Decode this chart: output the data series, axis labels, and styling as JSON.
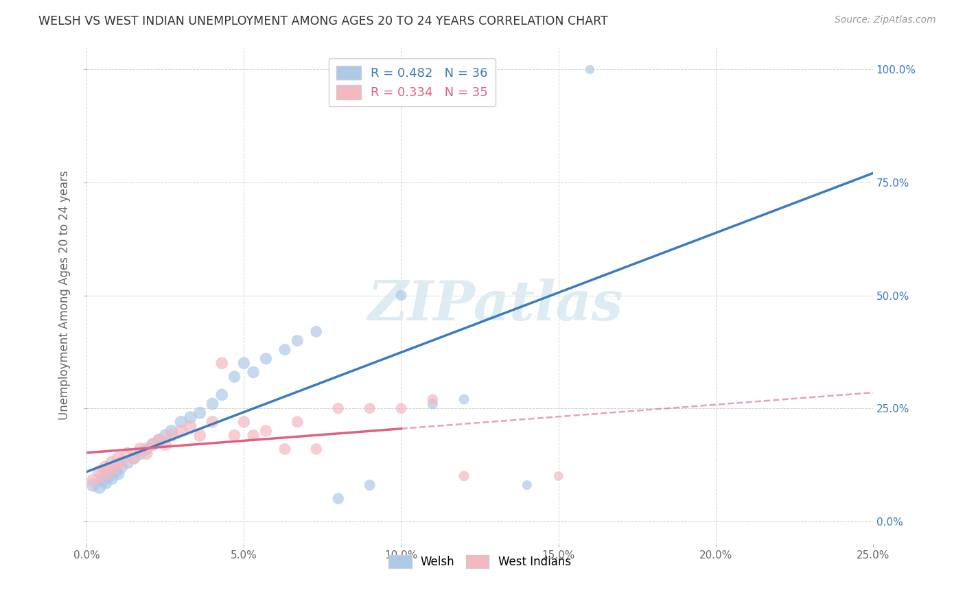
{
  "title": "WELSH VS WEST INDIAN UNEMPLOYMENT AMONG AGES 20 TO 24 YEARS CORRELATION CHART",
  "source": "Source: ZipAtlas.com",
  "xlabel_ticks": [
    "0.0%",
    "5.0%",
    "10.0%",
    "15.0%",
    "20.0%",
    "25.0%"
  ],
  "ylabel_label": "Unemployment Among Ages 20 to 24 years",
  "xlabel_range": [
    0.0,
    0.25
  ],
  "ylabel_range": [
    -5,
    105
  ],
  "watermark": "ZIPatlas",
  "legend_entries": [
    {
      "label": "R = 0.482   N = 36",
      "color": "#adc9e8"
    },
    {
      "label": "R = 0.334   N = 35",
      "color": "#f4b8c1"
    }
  ],
  "welsh_scatter": [
    [
      0.002,
      8.0
    ],
    [
      0.004,
      7.5
    ],
    [
      0.005,
      9.0
    ],
    [
      0.006,
      8.5
    ],
    [
      0.007,
      10.0
    ],
    [
      0.008,
      9.5
    ],
    [
      0.009,
      11.0
    ],
    [
      0.01,
      10.5
    ],
    [
      0.011,
      12.0
    ],
    [
      0.013,
      13.0
    ],
    [
      0.015,
      14.0
    ],
    [
      0.017,
      15.0
    ],
    [
      0.019,
      16.0
    ],
    [
      0.021,
      17.0
    ],
    [
      0.023,
      18.0
    ],
    [
      0.025,
      19.0
    ],
    [
      0.027,
      20.0
    ],
    [
      0.03,
      22.0
    ],
    [
      0.033,
      23.0
    ],
    [
      0.036,
      24.0
    ],
    [
      0.04,
      26.0
    ],
    [
      0.043,
      28.0
    ],
    [
      0.047,
      32.0
    ],
    [
      0.05,
      35.0
    ],
    [
      0.053,
      33.0
    ],
    [
      0.057,
      36.0
    ],
    [
      0.063,
      38.0
    ],
    [
      0.067,
      40.0
    ],
    [
      0.073,
      42.0
    ],
    [
      0.08,
      5.0
    ],
    [
      0.09,
      8.0
    ],
    [
      0.1,
      50.0
    ],
    [
      0.11,
      26.0
    ],
    [
      0.12,
      27.0
    ],
    [
      0.14,
      8.0
    ],
    [
      0.16,
      100.0
    ]
  ],
  "west_indian_scatter": [
    [
      0.002,
      9.0
    ],
    [
      0.004,
      11.0
    ],
    [
      0.005,
      10.0
    ],
    [
      0.006,
      12.0
    ],
    [
      0.007,
      11.0
    ],
    [
      0.008,
      13.0
    ],
    [
      0.009,
      12.0
    ],
    [
      0.01,
      14.0
    ],
    [
      0.011,
      13.0
    ],
    [
      0.013,
      15.0
    ],
    [
      0.015,
      14.0
    ],
    [
      0.017,
      16.0
    ],
    [
      0.019,
      15.0
    ],
    [
      0.021,
      17.0
    ],
    [
      0.023,
      18.0
    ],
    [
      0.025,
      17.0
    ],
    [
      0.027,
      19.0
    ],
    [
      0.03,
      20.0
    ],
    [
      0.033,
      21.0
    ],
    [
      0.036,
      19.0
    ],
    [
      0.04,
      22.0
    ],
    [
      0.043,
      35.0
    ],
    [
      0.047,
      19.0
    ],
    [
      0.05,
      22.0
    ],
    [
      0.053,
      19.0
    ],
    [
      0.057,
      20.0
    ],
    [
      0.063,
      16.0
    ],
    [
      0.067,
      22.0
    ],
    [
      0.073,
      16.0
    ],
    [
      0.08,
      25.0
    ],
    [
      0.09,
      25.0
    ],
    [
      0.1,
      25.0
    ],
    [
      0.11,
      27.0
    ],
    [
      0.12,
      10.0
    ],
    [
      0.15,
      10.0
    ]
  ],
  "welsh_color": "#adc9e8",
  "west_indian_color": "#f4b8c1",
  "welsh_line_color": "#3a7bbf",
  "west_indian_line_color": "#e06080",
  "background_color": "#ffffff",
  "grid_color": "#d0d0d0",
  "ytick_vals": [
    0,
    25,
    50,
    75,
    100
  ],
  "ytick_labels": [
    "0.0%",
    "25.0%",
    "50.0%",
    "75.0%",
    "100.0%"
  ],
  "xtick_vals": [
    0.0,
    0.05,
    0.1,
    0.15,
    0.2,
    0.25
  ]
}
